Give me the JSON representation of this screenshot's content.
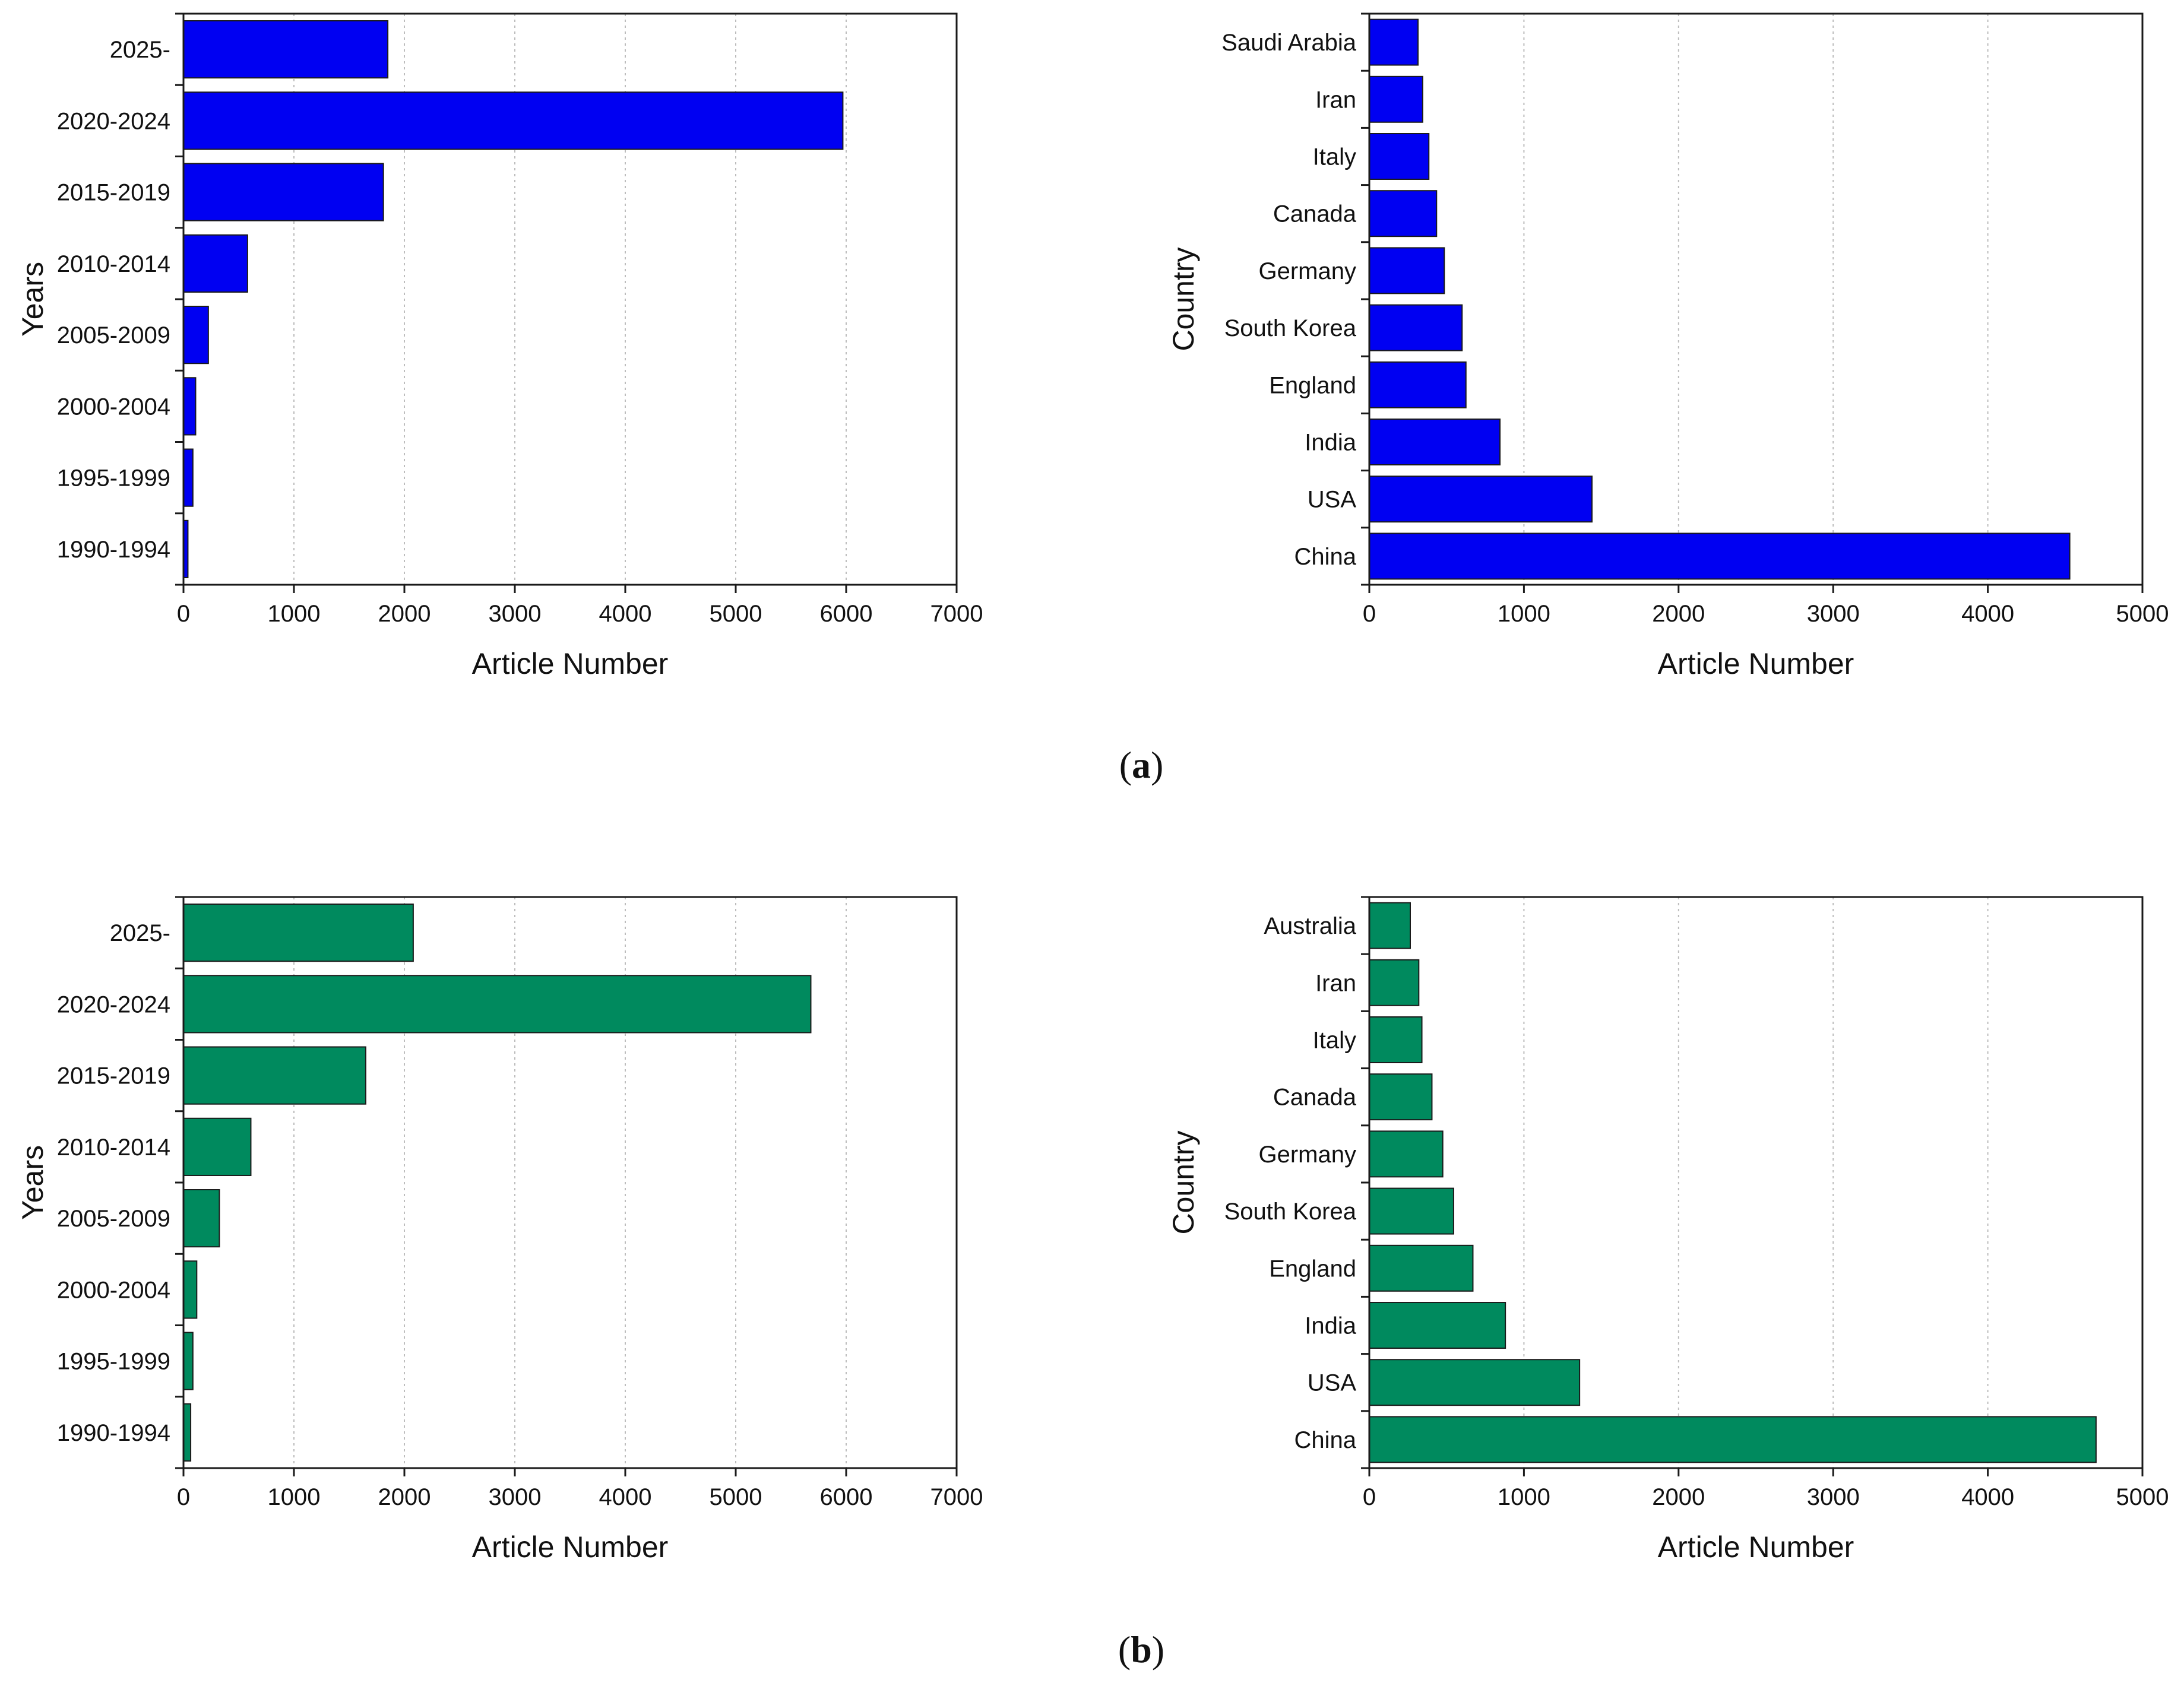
{
  "colors": {
    "set_a": "#0000f2",
    "set_b": "#008a5e",
    "grid": "#bcbcbc",
    "axis": "#1a1a1a"
  },
  "panels": [
    {
      "label_prefix": "(",
      "label_letter": "a",
      "label_suffix": ")"
    },
    {
      "label_prefix": "(",
      "label_letter": "b",
      "label_suffix": ")"
    }
  ],
  "chart_data": [
    {
      "type": "bar",
      "orientation": "horizontal",
      "panel": "a",
      "color": "#0000f2",
      "categories": [
        "1990-1994",
        "1995-1999",
        "2000-2004",
        "2005-2009",
        "2010-2014",
        "2015-2019",
        "2020-2024",
        "2025-"
      ],
      "values": [
        40,
        85,
        110,
        225,
        580,
        1810,
        5970,
        1850
      ],
      "xlabel": "Article Number",
      "ylabel": "Years",
      "xlim": [
        0,
        7000
      ],
      "xticks": [
        0,
        1000,
        2000,
        3000,
        4000,
        5000,
        6000,
        7000
      ],
      "grid": "vertical dotted"
    },
    {
      "type": "bar",
      "orientation": "horizontal",
      "panel": "a",
      "color": "#0000f2",
      "categories": [
        "China",
        "USA",
        "India",
        "England",
        "South Korea",
        "Germany",
        "Canada",
        "Italy",
        "Iran",
        "Saudi Arabia"
      ],
      "values": [
        4530,
        1440,
        845,
        625,
        600,
        485,
        435,
        385,
        345,
        315
      ],
      "xlabel": "Article Number",
      "ylabel": "Country",
      "xlim": [
        0,
        5000
      ],
      "xticks": [
        0,
        1000,
        2000,
        3000,
        4000,
        5000
      ],
      "grid": "vertical dotted"
    },
    {
      "type": "bar",
      "orientation": "horizontal",
      "panel": "b",
      "color": "#008a5e",
      "categories": [
        "1990-1994",
        "1995-1999",
        "2000-2004",
        "2005-2009",
        "2010-2014",
        "2015-2019",
        "2020-2024",
        "2025-"
      ],
      "values": [
        65,
        85,
        120,
        325,
        610,
        1650,
        5680,
        2080
      ],
      "xlabel": "Article Number",
      "ylabel": "Years",
      "xlim": [
        0,
        7000
      ],
      "xticks": [
        0,
        1000,
        2000,
        3000,
        4000,
        5000,
        6000,
        7000
      ],
      "grid": "vertical dotted"
    },
    {
      "type": "bar",
      "orientation": "horizontal",
      "panel": "b",
      "color": "#008a5e",
      "categories": [
        "China",
        "USA",
        "India",
        "England",
        "South Korea",
        "Germany",
        "Canada",
        "Italy",
        "Iran",
        "Australia"
      ],
      "values": [
        4700,
        1360,
        880,
        670,
        545,
        475,
        405,
        340,
        320,
        265
      ],
      "xlabel": "Article Number",
      "ylabel": "Country",
      "xlim": [
        0,
        5000
      ],
      "xticks": [
        0,
        1000,
        2000,
        3000,
        4000,
        5000
      ],
      "grid": "vertical dotted"
    }
  ]
}
